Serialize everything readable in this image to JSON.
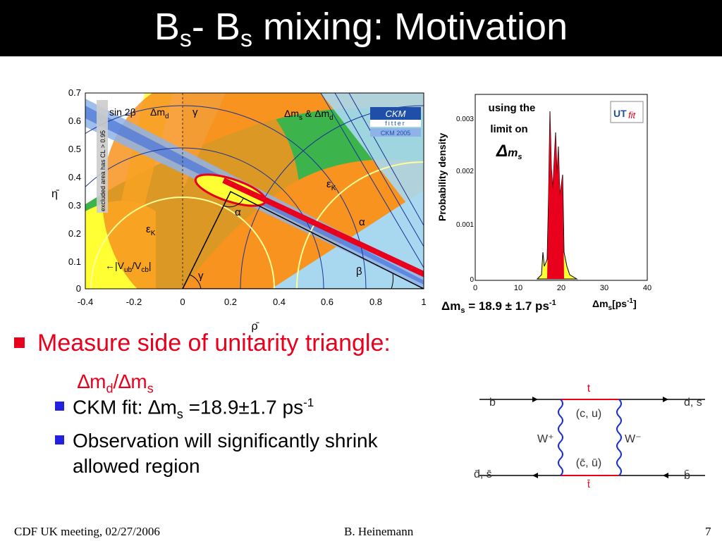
{
  "title": {
    "main": "B",
    "sub1": "s",
    "dash": "- B",
    "sub2": "s",
    "rest": " mixing: Motivation"
  },
  "ckm_plot": {
    "yticks": [
      "0.7",
      "0.6",
      "0.5",
      "0.4",
      "0.3",
      "0.2",
      "0.1",
      "0"
    ],
    "xticks": [
      "-0.4",
      "-0.2",
      "0",
      "0.2",
      "0.4",
      "0.6",
      "0.8",
      "1"
    ],
    "ylabel": "η̄",
    "xlabel": "ρ̄",
    "labels": {
      "sin2b": "sin 2β",
      "dmd": "Δm",
      "dmd_sub": "d",
      "gamma_top": "γ",
      "dms_dmd": "Δm",
      "dms_sub": "s",
      "amp": " & Δm",
      "dmd_sub2": "d",
      "eps_k_right": "ε",
      "eps_k_sub": "K",
      "eps_k_left": "ε",
      "alpha_tri": "α",
      "alpha_right": "α",
      "gamma_tri": "γ",
      "beta": "β",
      "vub": "←|V",
      "vub_sub": "ub",
      "vcb": "/V",
      "vcb_sub": "cb",
      "vbar": "|",
      "excluded": "excluded area has CL > 0.95",
      "logo_ckm": "CKM",
      "logo_fitter": "fitter",
      "logo_year": "CKM 2005"
    }
  },
  "utfit_plot": {
    "ylabel": "Probability density",
    "yticks": [
      "0.003",
      "0.002",
      "0.001",
      "0"
    ],
    "xticks": [
      "0",
      "10",
      "20",
      "30",
      "40"
    ],
    "xlabel": "Δm",
    "xlabel_sub": "s",
    "xlabel_unit": "[ps",
    "xlabel_sup": "-1",
    "xlabel_end": "]",
    "annotation_line1": "using the",
    "annotation_line2": "limit on",
    "annotation_dm": "Δ",
    "annotation_m": "m",
    "annotation_sub": "s",
    "logo_ut": "UT",
    "logo_fit": "fit",
    "result": "Δm",
    "result_sub": "s",
    "result_value": " = 18.9 ± 1.7 ps",
    "result_sup": "-1"
  },
  "bullets": {
    "main": "Measure side of unitarity triangle:",
    "ratio_a": "∆m",
    "ratio_a_sub": "d",
    "ratio_slash": "/∆m",
    "ratio_b_sub": "s",
    "ckm_prefix": "CKM fit: ∆m",
    "ckm_sub": "s",
    "ckm_value": " =18.9±1.7 ps",
    "ckm_sup": "-1",
    "obs_line1": "Observation will significantly shrink",
    "obs_line2": "allowed region"
  },
  "feynman": {
    "b_left": "b",
    "t": "t",
    "ds_right": "d, s",
    "cu": "(c, u)",
    "wplus": "W⁺",
    "wminus": "W⁻",
    "cu_bar": "(c̄, ū)",
    "ds_bar": "d̄, s̄",
    "b_bar": "b̄",
    "t_bar": "t̄"
  },
  "footer": {
    "left": "CDF UK meeting, 02/27/2006",
    "center": "B. Heinemann",
    "right": "7"
  },
  "colors": {
    "title_bg": "#000000",
    "title_text": "#ffffff",
    "accent_red": "#e8001c",
    "bullet_blue": "#2222dd"
  }
}
